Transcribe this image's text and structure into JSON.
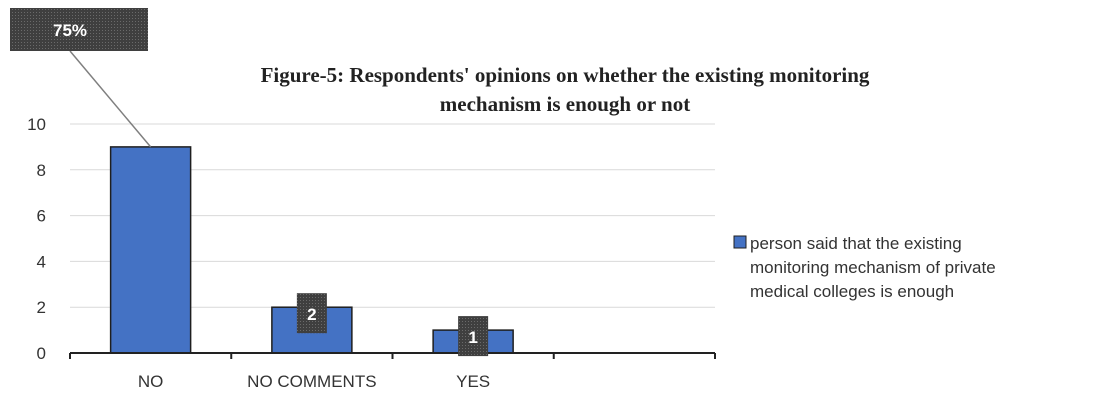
{
  "chart_data": {
    "type": "bar",
    "title_line1": "Figure-5: Respondents' opinions on whether the existing monitoring",
    "title_line2": "mechanism is enough or not",
    "categories": [
      "NO",
      "NO COMMENTS",
      "YES",
      ""
    ],
    "series": [
      {
        "name": "person said that the existing monitoring mechanism of private medical colleges is enough",
        "values": [
          9,
          2,
          1,
          null
        ]
      }
    ],
    "ylim": [
      0,
      10
    ],
    "yticks": [
      0,
      2,
      4,
      6,
      8,
      10
    ],
    "grid": true,
    "legend_position": "right",
    "bar_color": "#4472c4",
    "data_labels": [
      {
        "category": "NO",
        "text": "75%"
      },
      {
        "category": "NO COMMENTS",
        "text": "2"
      },
      {
        "category": "YES",
        "text": "1"
      }
    ],
    "legend_lines": [
      "person said that the existing",
      "monitoring mechanism of private",
      "medical colleges is enough"
    ]
  }
}
